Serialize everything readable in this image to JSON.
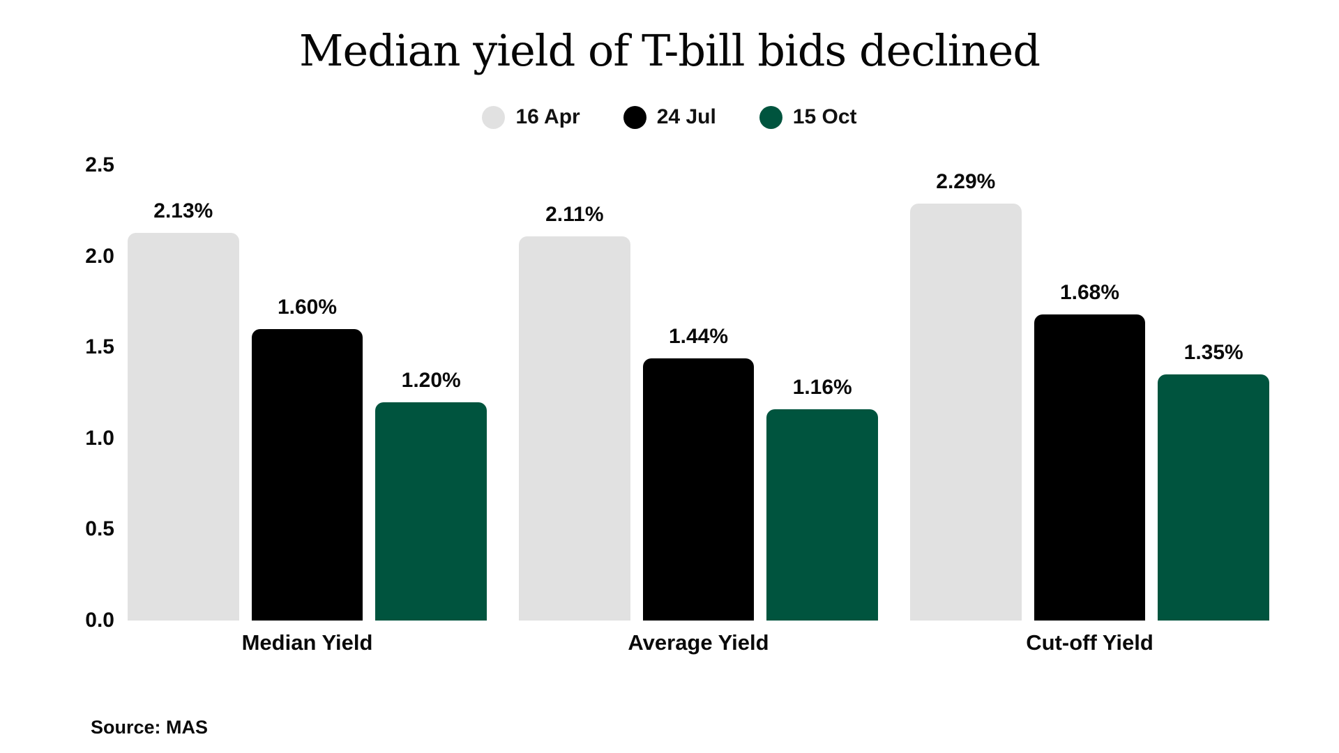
{
  "header": {
    "title": "Median yield of T-bill bids declined"
  },
  "footer": {
    "source": "Source: MAS"
  },
  "colors": {
    "series_apr": "#e1e1e1",
    "series_jul": "#000000",
    "series_oct": "#00543e",
    "background": "#ffffff",
    "text": "#0a0a0a"
  },
  "chart_data": {
    "type": "bar",
    "title": "Median yield of T-bill bids declined",
    "categories": [
      "Median Yield",
      "Average Yield",
      "Cut-off Yield"
    ],
    "series": [
      {
        "name": "16 Apr",
        "color": "#e1e1e1",
        "values": [
          2.13,
          2.11,
          2.29
        ],
        "labels": [
          "2.13%",
          "2.11%",
          "2.29%"
        ]
      },
      {
        "name": "24 Jul",
        "color": "#000000",
        "values": [
          1.6,
          1.44,
          1.68
        ],
        "labels": [
          "1.60%",
          "1.44%",
          "1.68%"
        ]
      },
      {
        "name": "15 Oct",
        "color": "#00543e",
        "values": [
          1.2,
          1.16,
          1.35
        ],
        "labels": [
          "1.20%",
          "1.16%",
          "1.35%"
        ]
      }
    ],
    "ylabel": "",
    "xlabel": "",
    "ylim": [
      0,
      2.5
    ],
    "yticks": [
      "2.5",
      "2.0",
      "1.5",
      "1.0",
      "0.5",
      "0.0"
    ],
    "grid": false,
    "legend_position": "top-center",
    "source": "Source: MAS"
  }
}
